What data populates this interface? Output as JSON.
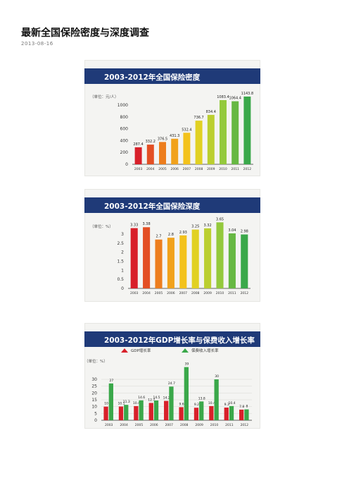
{
  "page": {
    "title": "最新全国保险密度与深度调查",
    "date": "2013-08-16"
  },
  "colors": {
    "banner": "#1f3a78",
    "banner_text": "#ffffff",
    "gdp": "#d8202a",
    "premium": "#3aa84a",
    "gradient": [
      "#d8202a",
      "#f08a1c",
      "#f4d21c",
      "#9fcd3a",
      "#3aa84a"
    ]
  },
  "chart_data": [
    {
      "type": "bar",
      "title": "2003-2012年全国保险密度",
      "ylabel": "（单位：元/人）",
      "categories": [
        "2003",
        "2004",
        "2005",
        "2006",
        "2007",
        "2008",
        "2009",
        "2010",
        "2011",
        "2012"
      ],
      "values": [
        287.4,
        332.2,
        376.5,
        431.3,
        532.4,
        736.7,
        834.4,
        1083.4,
        1064.4,
        1143.8
      ],
      "data_labels": [
        "287.4",
        "332.2",
        "376.5",
        "431.3",
        "532.4",
        "736.7",
        "834.4",
        "1083.4",
        "1064.4",
        "1143.8"
      ],
      "yticks": [
        "0",
        "200",
        "400",
        "600",
        "800",
        "1000"
      ],
      "ylim": [
        0,
        1000
      ]
    },
    {
      "type": "bar",
      "title": "2003-2012年全国保险深度",
      "ylabel": "（单位：%）",
      "categories": [
        "2003",
        "2004",
        "2005",
        "2006",
        "2007",
        "2008",
        "2009",
        "2010",
        "2011",
        "2012"
      ],
      "values": [
        3.33,
        3.38,
        2.7,
        2.8,
        2.93,
        3.25,
        3.32,
        3.65,
        3.04,
        2.98
      ],
      "data_labels": [
        "3.33",
        "3.38",
        "2.7",
        "2.8",
        "2.93",
        "3.25",
        "3.32",
        "3.65",
        "3.04",
        "2.98"
      ],
      "yticks": [
        "0",
        "0.5",
        "1",
        "1.5",
        "2",
        "2.5",
        "3"
      ],
      "ylim": [
        0,
        3
      ]
    },
    {
      "type": "bar",
      "title": "2003-2012年GDP增长率与保费收入增长率",
      "ylabel": "（单位：%）",
      "categories": [
        "2003",
        "2004",
        "2005",
        "2006",
        "2007",
        "2008",
        "2009",
        "2010",
        "2011",
        "2012"
      ],
      "series": [
        {
          "name": "GDP增长率",
          "values": [
            10,
            10.1,
            10.4,
            12.7,
            14.2,
            9.6,
            9.2,
            10.4,
            9.3,
            7.8
          ],
          "data_labels": [
            "10",
            "10.1",
            "10.4",
            "12.7",
            "14.2",
            "9.6",
            "9.2",
            "10.4",
            "9.3",
            "7.8"
          ]
        },
        {
          "name": "保费收入增长率",
          "values": [
            27,
            11.3,
            14.6,
            14.5,
            24.7,
            39,
            13.8,
            30,
            10.4,
            8
          ],
          "data_labels": [
            "27",
            "11.3",
            "14.6",
            "14.5",
            "24.7",
            "39",
            "13.8",
            "30",
            "10.4",
            "8"
          ]
        }
      ],
      "yticks": [
        "0",
        "5",
        "10",
        "15",
        "20",
        "25",
        "30"
      ],
      "ylim": [
        0,
        30
      ],
      "legend_position": "top"
    }
  ]
}
